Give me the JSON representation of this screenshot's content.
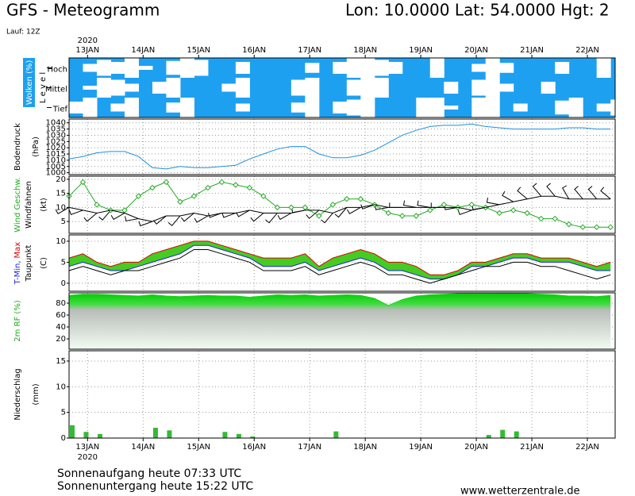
{
  "header": {
    "title": "GFS - Meteogramm",
    "location": "Lon: 10.0000 Lat: 54.0000 Hgt: 2",
    "run": "Lauf: 12Z"
  },
  "footer": {
    "sunrise": "Sonnenaufgang heute 07:33 UTC",
    "sunset": "Sonnenuntergang heute 15:22 UTC",
    "url": "www.wetterzentrale.de"
  },
  "chart_data": [
    {
      "type": "heatmap",
      "title": "Wolken (%)",
      "level_label": "L e v e l",
      "xlabel": "2020",
      "color": "#1ea0f0",
      "x": [
        0,
        6,
        12,
        18,
        24,
        30,
        36,
        42,
        48,
        54,
        60,
        66,
        72,
        78,
        84,
        90,
        96,
        102,
        108,
        114,
        120,
        126,
        132,
        138,
        144,
        150,
        156,
        162,
        168,
        174,
        180,
        186,
        192,
        198,
        204,
        210,
        216,
        222,
        228,
        234
      ],
      "xlim": [
        0,
        236
      ],
      "xticks": [
        {
          "value": 8,
          "label": "13JAN"
        },
        {
          "value": 32,
          "label": "14JAN"
        },
        {
          "value": 56,
          "label": "15JAN"
        },
        {
          "value": 80,
          "label": "16JAN"
        },
        {
          "value": 104,
          "label": "17JAN"
        },
        {
          "value": 128,
          "label": "18JAN"
        },
        {
          "value": 152,
          "label": "19JAN"
        },
        {
          "value": 176,
          "label": "20JAN"
        },
        {
          "value": 200,
          "label": "21JAN"
        },
        {
          "value": 224,
          "label": "22JAN"
        }
      ],
      "series": [
        {
          "name": "Hoch",
          "values": [
            100,
            60,
            20,
            40,
            0,
            80,
            100,
            30,
            0,
            20,
            100,
            100,
            40,
            100,
            100,
            100,
            100,
            50,
            100,
            40,
            0,
            0,
            20,
            40,
            100,
            100,
            0,
            100,
            100,
            60,
            0,
            50,
            100,
            100,
            100,
            40,
            100,
            100,
            0,
            100
          ]
        },
        {
          "name": "Mittel",
          "values": [
            100,
            80,
            0,
            20,
            60,
            100,
            40,
            0,
            100,
            100,
            100,
            60,
            0,
            100,
            100,
            100,
            20,
            0,
            100,
            100,
            20,
            0,
            0,
            100,
            100,
            100,
            100,
            40,
            100,
            20,
            0,
            60,
            100,
            100,
            40,
            100,
            100,
            100,
            100,
            100
          ]
        },
        {
          "name": "Tief",
          "values": [
            40,
            0,
            100,
            60,
            0,
            100,
            100,
            50,
            0,
            100,
            100,
            100,
            60,
            100,
            100,
            100,
            50,
            0,
            100,
            40,
            20,
            0,
            100,
            100,
            100,
            0,
            0,
            80,
            100,
            0,
            0,
            100,
            60,
            100,
            100,
            30,
            0,
            100,
            60,
            20
          ]
        }
      ]
    },
    {
      "type": "line",
      "ylabel": [
        "Bodendruck",
        "(hPa)"
      ],
      "grid": true,
      "x": [
        0,
        6,
        12,
        18,
        24,
        30,
        36,
        42,
        48,
        54,
        60,
        66,
        72,
        78,
        84,
        90,
        96,
        102,
        108,
        114,
        120,
        126,
        132,
        138,
        144,
        150,
        156,
        162,
        168,
        174,
        180,
        186,
        192,
        198,
        204,
        210,
        216,
        222,
        228,
        234
      ],
      "xlim": [
        0,
        236
      ],
      "ylim": [
        998.5,
        1043
      ],
      "yticks": [
        1000,
        1005,
        1010,
        1015,
        1020,
        1025,
        1030,
        1035,
        1040
      ],
      "series": [
        {
          "color": "#1e90e0",
          "values": [
            1011,
            1013,
            1016,
            1017,
            1017,
            1013,
            1004,
            1003,
            1005,
            1004,
            1004,
            1005,
            1006,
            1011,
            1015,
            1019,
            1021,
            1021,
            1015,
            1012,
            1012,
            1014,
            1018,
            1024,
            1030,
            1034,
            1037,
            1038,
            1038,
            1039,
            1037,
            1036,
            1035,
            1035,
            1035,
            1035,
            1036,
            1036,
            1035,
            1035
          ]
        }
      ]
    },
    {
      "type": "line",
      "ylabel": [
        "(kt)"
      ],
      "grid": true,
      "x": [
        0,
        6,
        12,
        18,
        24,
        30,
        36,
        42,
        48,
        54,
        60,
        66,
        72,
        78,
        84,
        90,
        96,
        102,
        108,
        114,
        120,
        126,
        132,
        138,
        144,
        150,
        156,
        162,
        168,
        174,
        180,
        186,
        192,
        198,
        204,
        210,
        216,
        222,
        228,
        234
      ],
      "xlim": [
        0,
        236
      ],
      "ylim": [
        0.8,
        21.1
      ],
      "yticks": [
        5,
        10,
        15,
        20
      ],
      "series": [
        {
          "name": "Wind Geschw.",
          "color": "#22aa22",
          "marker": "diamond",
          "values": [
            14,
            19,
            11,
            9,
            9,
            14,
            17,
            19,
            12,
            14,
            17,
            19,
            18,
            17,
            14,
            10,
            10,
            10,
            7,
            11,
            13,
            13,
            11,
            8,
            7,
            7,
            9,
            11,
            10,
            11,
            10,
            8,
            9,
            8,
            6,
            6,
            4,
            3,
            3,
            3
          ]
        },
        {
          "name": "Windfahnen",
          "color": "#000000",
          "values": [
            10,
            9,
            8,
            9,
            8,
            6,
            5,
            7,
            7,
            8,
            7,
            8,
            8,
            9,
            8,
            8,
            8,
            9,
            9,
            8,
            10,
            10,
            11,
            10,
            10,
            10,
            10,
            10,
            10,
            9,
            10,
            11,
            12,
            13,
            14,
            14,
            13,
            13,
            13,
            13
          ]
        }
      ],
      "directions": [
        240,
        250,
        230,
        220,
        240,
        260,
        250,
        230,
        220,
        230,
        240,
        250,
        250,
        240,
        230,
        220,
        240,
        260,
        230,
        220,
        220,
        240,
        250,
        260,
        270,
        280,
        280,
        270,
        260,
        250,
        260,
        280,
        300,
        310,
        320,
        320,
        330,
        320,
        320,
        310
      ]
    },
    {
      "type": "line",
      "ylabel": [
        "(C)"
      ],
      "grid": true,
      "fill": "#44cc22",
      "x": [
        0,
        6,
        12,
        18,
        24,
        30,
        36,
        42,
        48,
        54,
        60,
        66,
        72,
        78,
        84,
        90,
        96,
        102,
        108,
        114,
        120,
        126,
        132,
        138,
        144,
        150,
        156,
        162,
        168,
        174,
        180,
        186,
        192,
        198,
        204,
        210,
        216,
        222,
        228,
        234
      ],
      "xlim": [
        0,
        236
      ],
      "ylim": [
        -1.9,
        11.5
      ],
      "yticks": [
        0,
        5,
        10
      ],
      "series": [
        {
          "name": "T-Min,",
          "color": "#2020e0",
          "values": [
            4,
            5,
            4,
            3,
            3,
            4,
            5,
            6,
            7,
            9,
            9,
            8,
            7,
            6,
            4,
            4,
            4,
            5,
            3,
            4,
            5,
            6,
            5,
            3,
            3,
            2,
            1,
            1,
            2,
            4,
            4,
            5,
            6,
            6,
            5,
            5,
            5,
            4,
            3,
            3
          ]
        },
        {
          "name": "Max",
          "color": "#e00000",
          "values": [
            6,
            7,
            5,
            4,
            5,
            5,
            7,
            8,
            9,
            10,
            10,
            9,
            8,
            7,
            6,
            6,
            6,
            7,
            4,
            6,
            7,
            8,
            7,
            5,
            5,
            4,
            2,
            2,
            3,
            5,
            5,
            6,
            7,
            7,
            6,
            6,
            6,
            5,
            4,
            5
          ]
        },
        {
          "name": "Taupunkt",
          "color": "#000000",
          "values": [
            3,
            4,
            3,
            2,
            3,
            3,
            4,
            5,
            6,
            8,
            8,
            7,
            6,
            5,
            3,
            3,
            3,
            4,
            2,
            3,
            4,
            5,
            4,
            2,
            2,
            1,
            0,
            1,
            2,
            3,
            4,
            4,
            5,
            5,
            4,
            4,
            3,
            2,
            1,
            2
          ]
        }
      ]
    },
    {
      "type": "area",
      "ylabel": [
        "2m RF (%)"
      ],
      "grid": true,
      "x": [
        0,
        6,
        12,
        18,
        24,
        30,
        36,
        42,
        48,
        54,
        60,
        66,
        72,
        78,
        84,
        90,
        96,
        102,
        108,
        114,
        120,
        126,
        132,
        138,
        144,
        150,
        156,
        162,
        168,
        174,
        180,
        186,
        192,
        198,
        204,
        210,
        216,
        222,
        228,
        234
      ],
      "xlim": [
        0,
        236
      ],
      "ylim": [
        2.7,
        97.3
      ],
      "yticks": [
        20,
        40,
        60,
        80
      ],
      "series": [
        {
          "color": "#22cc22",
          "values": [
            93,
            95,
            95,
            94,
            93,
            92,
            94,
            92,
            91,
            92,
            93,
            92,
            92,
            90,
            92,
            94,
            93,
            94,
            92,
            93,
            94,
            93,
            88,
            76,
            86,
            92,
            94,
            95,
            96,
            96,
            96,
            97,
            97,
            96,
            95,
            94,
            92,
            92,
            91,
            93
          ]
        }
      ]
    },
    {
      "type": "bar",
      "ylabel": [
        "Niederschlag",
        "(mm)"
      ],
      "xlabel": "2020",
      "grid": true,
      "color": "#33bb33",
      "x": [
        0,
        6,
        12,
        18,
        24,
        30,
        36,
        42,
        48,
        54,
        60,
        66,
        72,
        78,
        84,
        90,
        96,
        102,
        108,
        114,
        120,
        126,
        132,
        138,
        144,
        150,
        156,
        162,
        168,
        174,
        180,
        186,
        192,
        198,
        204,
        210,
        216,
        222,
        228,
        234
      ],
      "xlim": [
        0,
        236
      ],
      "ylim": [
        0,
        17
      ],
      "yticks": [
        0,
        5,
        10,
        15
      ],
      "xticks": [
        {
          "value": 8,
          "label": "13JAN"
        },
        {
          "value": 32,
          "label": "14JAN"
        },
        {
          "value": 56,
          "label": "15JAN"
        },
        {
          "value": 80,
          "label": "16JAN"
        },
        {
          "value": 104,
          "label": "17JAN"
        },
        {
          "value": 128,
          "label": "18JAN"
        },
        {
          "value": 152,
          "label": "19JAN"
        },
        {
          "value": 176,
          "label": "20JAN"
        },
        {
          "value": 200,
          "label": "21JAN"
        },
        {
          "value": 224,
          "label": "22JAN"
        }
      ],
      "values": [
        2.5,
        1.2,
        0.8,
        0,
        0,
        0,
        2.0,
        1.5,
        0,
        0,
        0,
        1.2,
        0.8,
        0.3,
        0,
        0,
        0,
        0,
        0,
        1.3,
        0,
        0,
        0,
        0,
        0,
        0,
        0,
        0,
        0,
        0,
        0.6,
        1.6,
        1.3,
        0,
        0,
        0,
        0,
        0,
        0,
        0
      ]
    }
  ]
}
